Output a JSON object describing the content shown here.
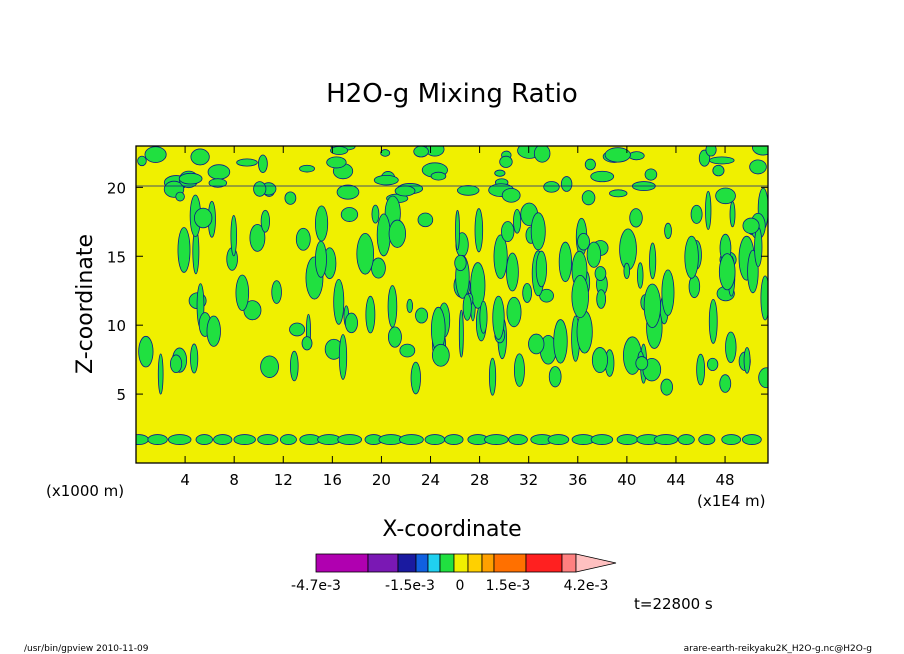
{
  "chart_data": {
    "type": "heatmap",
    "title": "H2O-g Mixing Ratio",
    "xlabel": "X-coordinate",
    "ylabel": "Z-coordinate",
    "x_unit_note": "(x1E4 m)",
    "y_unit_note": "(x1000 m)",
    "xlim": [
      0,
      51.5
    ],
    "ylim": [
      0,
      23
    ],
    "x_ticks": [
      4,
      8,
      12,
      16,
      20,
      24,
      28,
      32,
      36,
      40,
      44,
      48
    ],
    "y_ticks": [
      5,
      10,
      15,
      20
    ],
    "colorbar": {
      "colors": [
        "#b000b0",
        "#7a18b4",
        "#1a1aa0",
        "#1060e0",
        "#20d0f0",
        "#20e040",
        "#f0f000",
        "#ffd000",
        "#ffa000",
        "#ff7000",
        "#ff2020",
        "#ff8080",
        "#ffc0c0"
      ],
      "labels": [
        "-4.7e-3",
        "-1.5e-3",
        "0",
        "1.5e-3",
        "4.2e-3"
      ]
    },
    "time_label": "t=22800 s",
    "colors": {
      "yellow": "#f0f000",
      "green": "#20e040",
      "contour": "#0a1a8a"
    }
  },
  "footer": {
    "left": "/usr/bin/gpview  2010-11-09",
    "right": "arare-earth-reikyaku2K_H2O-g.nc@H2O-g"
  }
}
